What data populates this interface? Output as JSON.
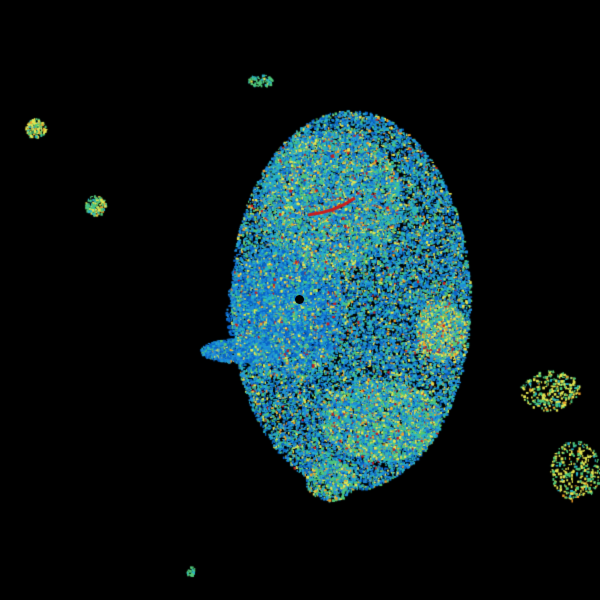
{
  "radar": {
    "background": "#000000",
    "site_marker_color": "#000000",
    "palette": {
      "weak": "#0a64c8",
      "light": "#1e8cdc",
      "cyan": "#28b4c8",
      "green": "#50c878",
      "yellow": "#e6e650",
      "orange": "#f0a028",
      "red": "#c81e1e",
      "pale_green": "#a0e6a0"
    }
  }
}
